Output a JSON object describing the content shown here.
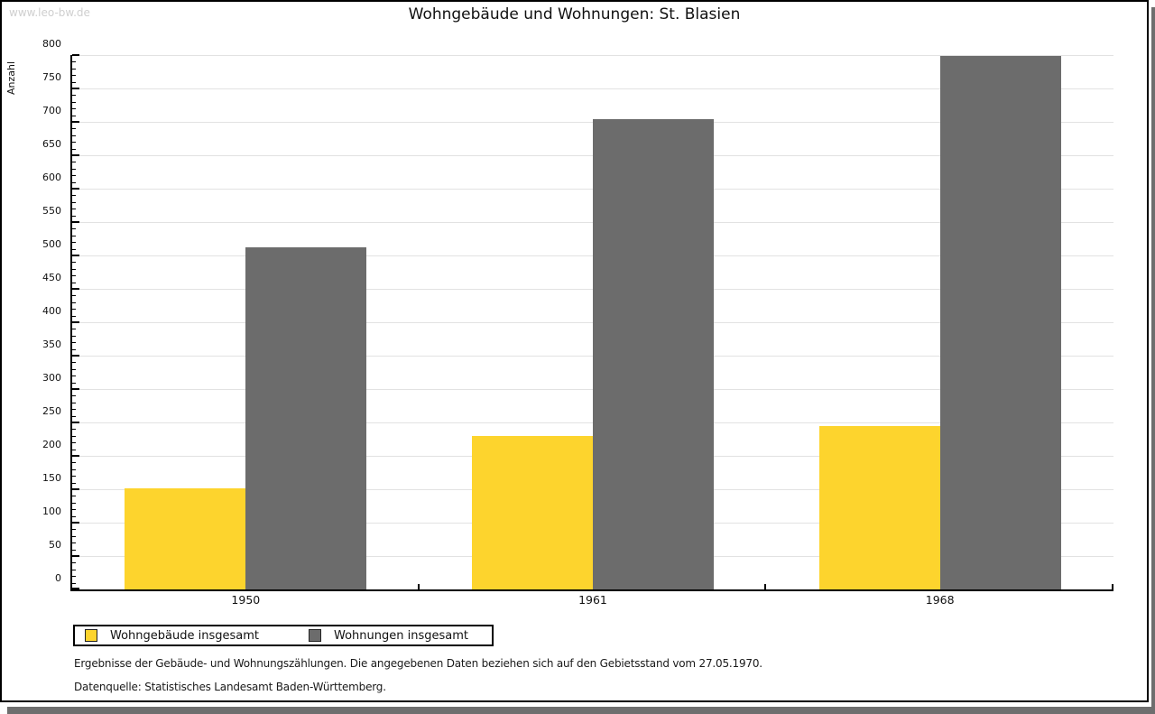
{
  "watermark": "www.leo-bw.de",
  "title": "Wohngebäude und Wohnungen: St. Blasien",
  "chart_data": {
    "type": "bar",
    "title": "Wohngebäude und Wohnungen: St. Blasien",
    "categories": [
      "1950",
      "1961",
      "1968"
    ],
    "series": [
      {
        "name": "Wohngebäude insgesamt",
        "color": "#fdd42d",
        "values": [
          152,
          230,
          244
        ]
      },
      {
        "name": "Wohnungen insgesamt",
        "color": "#6c6c6c",
        "values": [
          512,
          704,
          798
        ]
      }
    ],
    "xlabel": "",
    "ylabel": "Anzahl",
    "ylim": [
      0,
      800
    ],
    "yticks": [
      0,
      50,
      100,
      150,
      200,
      250,
      300,
      350,
      400,
      450,
      500,
      550,
      600,
      650,
      700,
      750,
      800
    ],
    "minor_tick_step": 10,
    "grid": true,
    "legend_position": "bottom-left"
  },
  "footnotes": {
    "line1": "Ergebnisse der Gebäude- und Wohnungszählungen. Die angegebenen Daten beziehen sich auf den Gebietsstand vom 27.05.1970.",
    "line2": "Datenquelle: Statistisches Landesamt Baden-Württemberg."
  },
  "colors": {
    "bar_yellow": "#fdd42d",
    "bar_gray": "#6c6c6c",
    "gridline": "#e2e2e2",
    "page_shadow": "#6e6e6e",
    "watermark": "#cfcfcf"
  }
}
